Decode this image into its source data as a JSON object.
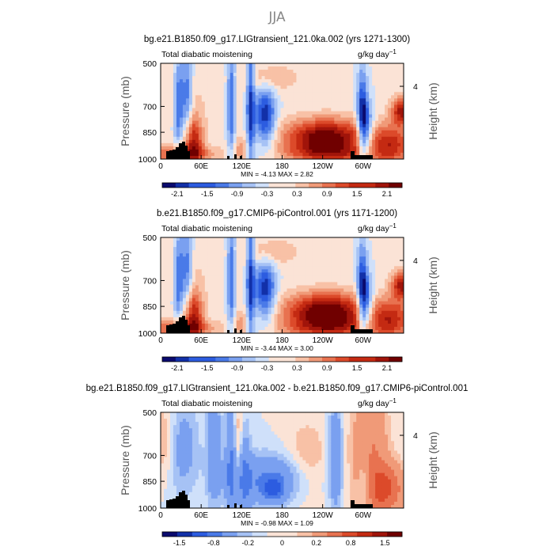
{
  "page_title": "JJA",
  "chart_data": [
    {
      "type": "heatmap",
      "title": "bg.e21.B1850.f09_g17.LIGtransient_121.0ka.002 (yrs 1271-1300)",
      "left_label": "Total diabatic moistening",
      "right_label": "g/kg day",
      "right_label_exp": "−1",
      "ylabel": "Pressure (mb)",
      "y2label": "Height (km)",
      "y_ticks": [
        "500",
        "700",
        "850",
        "1000"
      ],
      "y2_ticks": [
        "4"
      ],
      "x_ticks": [
        "0",
        "60E",
        "120E",
        "180",
        "120W",
        "60W"
      ],
      "stats": "MIN =  -4.13   MAX =    2.82",
      "colorbar_ticks": [
        "-2.1",
        "-1.5",
        "-0.9",
        "-0.3",
        "0.3",
        "0.9",
        "1.5",
        "2.1"
      ],
      "levels": [
        -2.4,
        -2.1,
        -1.8,
        -1.5,
        -1.2,
        -0.9,
        -0.6,
        -0.3,
        0,
        0.3,
        0.6,
        0.9,
        1.2,
        1.5,
        1.8,
        2.1,
        2.4
      ]
    },
    {
      "type": "heatmap",
      "title": "b.e21.B1850.f09_g17.CMIP6-piControl.001 (yrs 1171-1200)",
      "left_label": "Total diabatic moistening",
      "right_label": "g/kg day",
      "right_label_exp": "−1",
      "ylabel": "Pressure (mb)",
      "y2label": "Height (km)",
      "y_ticks": [
        "500",
        "700",
        "850",
        "1000"
      ],
      "y2_ticks": [
        "4"
      ],
      "x_ticks": [
        "0",
        "60E",
        "120E",
        "180",
        "120W",
        "60W"
      ],
      "stats": "MIN =  -3.44   MAX =    3.00",
      "colorbar_ticks": [
        "-2.1",
        "-1.5",
        "-0.9",
        "-0.3",
        "0.3",
        "0.9",
        "1.5",
        "2.1"
      ],
      "levels": [
        -2.4,
        -2.1,
        -1.8,
        -1.5,
        -1.2,
        -0.9,
        -0.6,
        -0.3,
        0,
        0.3,
        0.6,
        0.9,
        1.2,
        1.5,
        1.8,
        2.1,
        2.4
      ]
    },
    {
      "type": "heatmap",
      "title": "bg.e21.B1850.f09_g17.LIGtransient_121.0ka.002 - b.e21.B1850.f09_g17.CMIP6-piControl.001",
      "left_label": "Total diabatic moistening",
      "right_label": "g/kg day",
      "right_label_exp": "−1",
      "ylabel": "Pressure (mb)",
      "y2label": "Height (km)",
      "y_ticks": [
        "500",
        "700",
        "850",
        "1000"
      ],
      "y2_ticks": [
        "4"
      ],
      "x_ticks": [
        "0",
        "60E",
        "120E",
        "180",
        "120W",
        "60W"
      ],
      "stats": "MIN =  -0.98   MAX =    1.09",
      "colorbar_ticks": [
        "-1.5",
        "-0.8",
        "-0.2",
        "0",
        "0.2",
        "0.8",
        "1.5"
      ],
      "levels": [
        -2.0,
        -1.5,
        -1.2,
        -0.8,
        -0.5,
        -0.2,
        -0.1,
        0,
        0.1,
        0.2,
        0.5,
        0.8,
        1.2,
        1.5,
        2.0
      ]
    }
  ],
  "colormap": [
    "#0a0a6e",
    "#1230a8",
    "#2c5ce0",
    "#4a7ae8",
    "#7aa0f0",
    "#a6c2f5",
    "#cfe0fa",
    "#fbe3d6",
    "#f8c1a6",
    "#f09a78",
    "#e87250",
    "#dc4a2a",
    "#c42a12",
    "#a0140a",
    "#700000"
  ]
}
